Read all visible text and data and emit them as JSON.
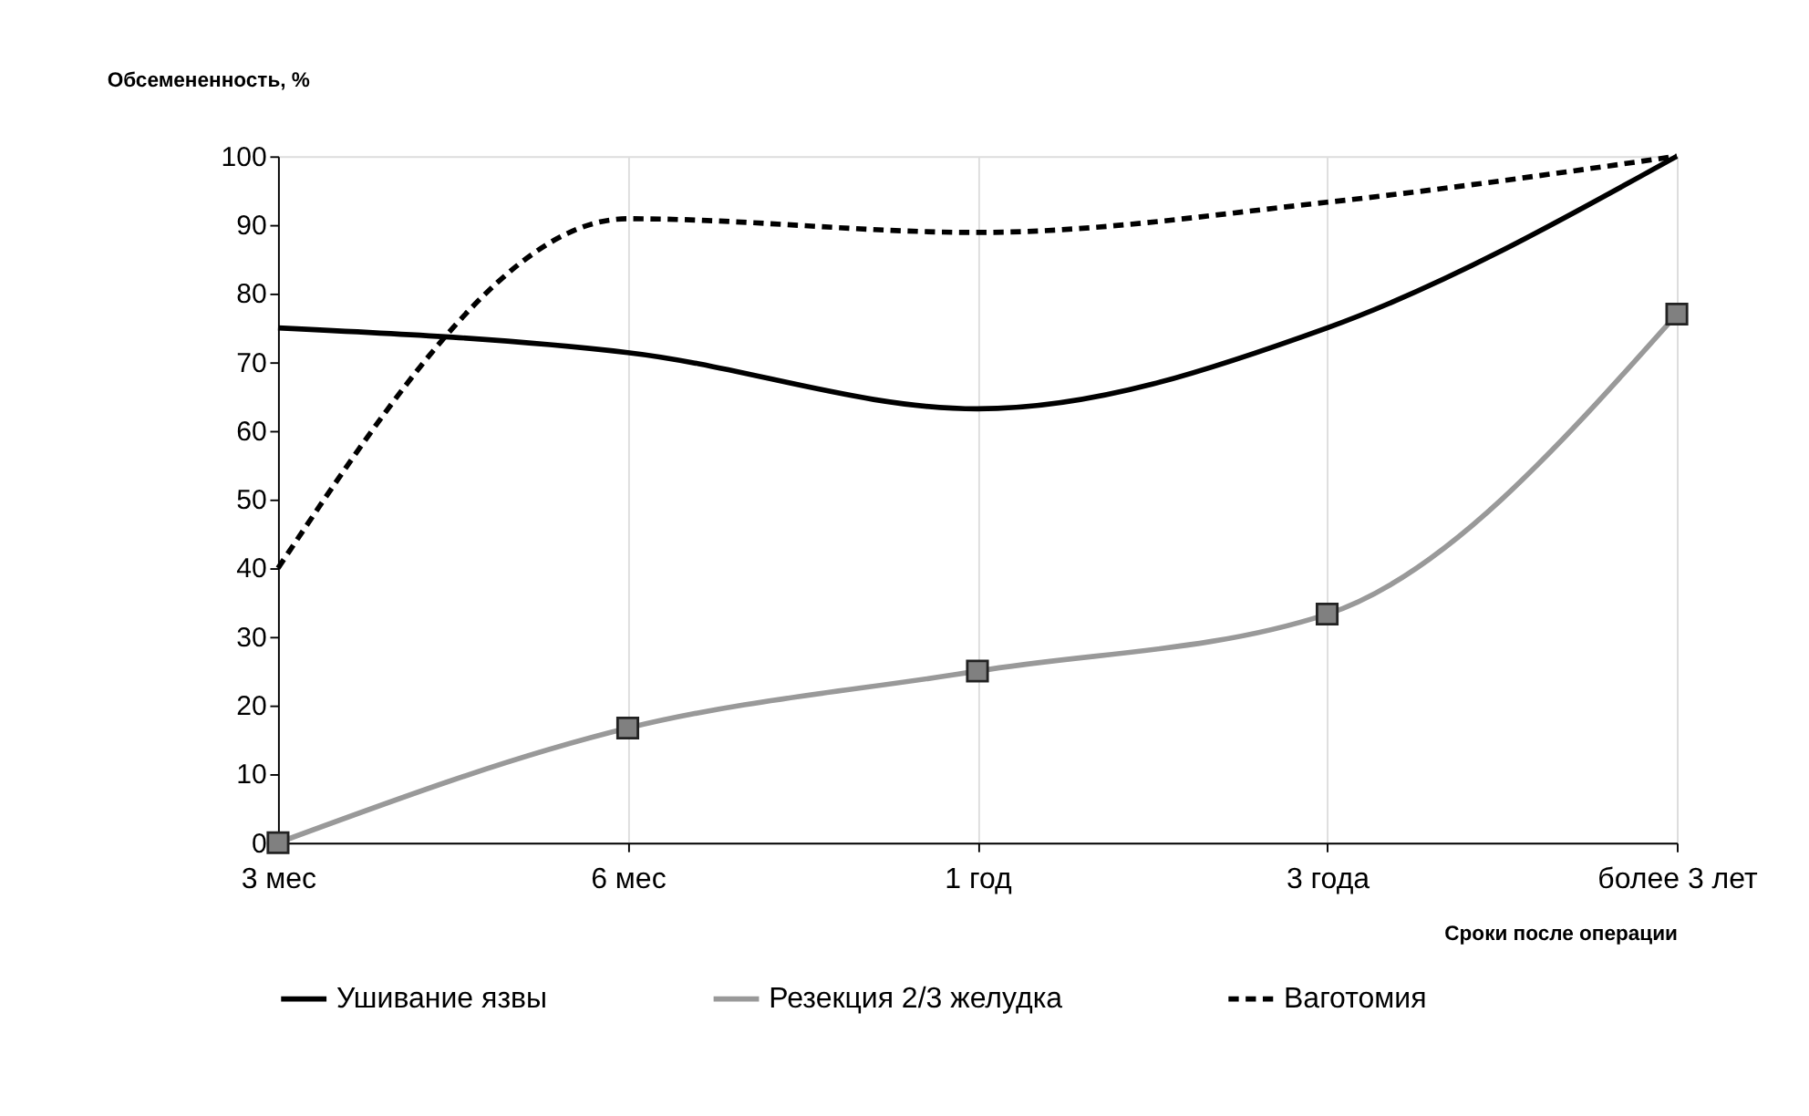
{
  "chart_data": {
    "type": "line",
    "xlabel": "Сроки после операции",
    "ylabel": "Обсемененность, %",
    "categories": [
      "3 мес",
      "6 мес",
      "1 год",
      "3 года",
      "более 3 лет"
    ],
    "series": [
      {
        "name": "Ушивание язвы",
        "color": "#000000",
        "line_style": "solid",
        "marker": "none",
        "values": [
          75,
          71.4,
          63.2,
          75,
          100
        ]
      },
      {
        "name": "Резекция 2/3 желудка",
        "color": "#999999",
        "line_style": "solid",
        "marker": "square",
        "values": [
          0,
          16.7,
          25,
          33.3,
          77
        ]
      },
      {
        "name": "Ваготомия",
        "color": "#000000",
        "line_style": "dashed",
        "marker": "none",
        "values": [
          40,
          90.9,
          88.9,
          93.3,
          100
        ]
      }
    ],
    "ylim": [
      0,
      100
    ],
    "yticks": [
      0,
      10,
      20,
      30,
      40,
      50,
      60,
      70,
      80,
      90,
      100
    ],
    "grid": "x",
    "legend": "bottom"
  }
}
